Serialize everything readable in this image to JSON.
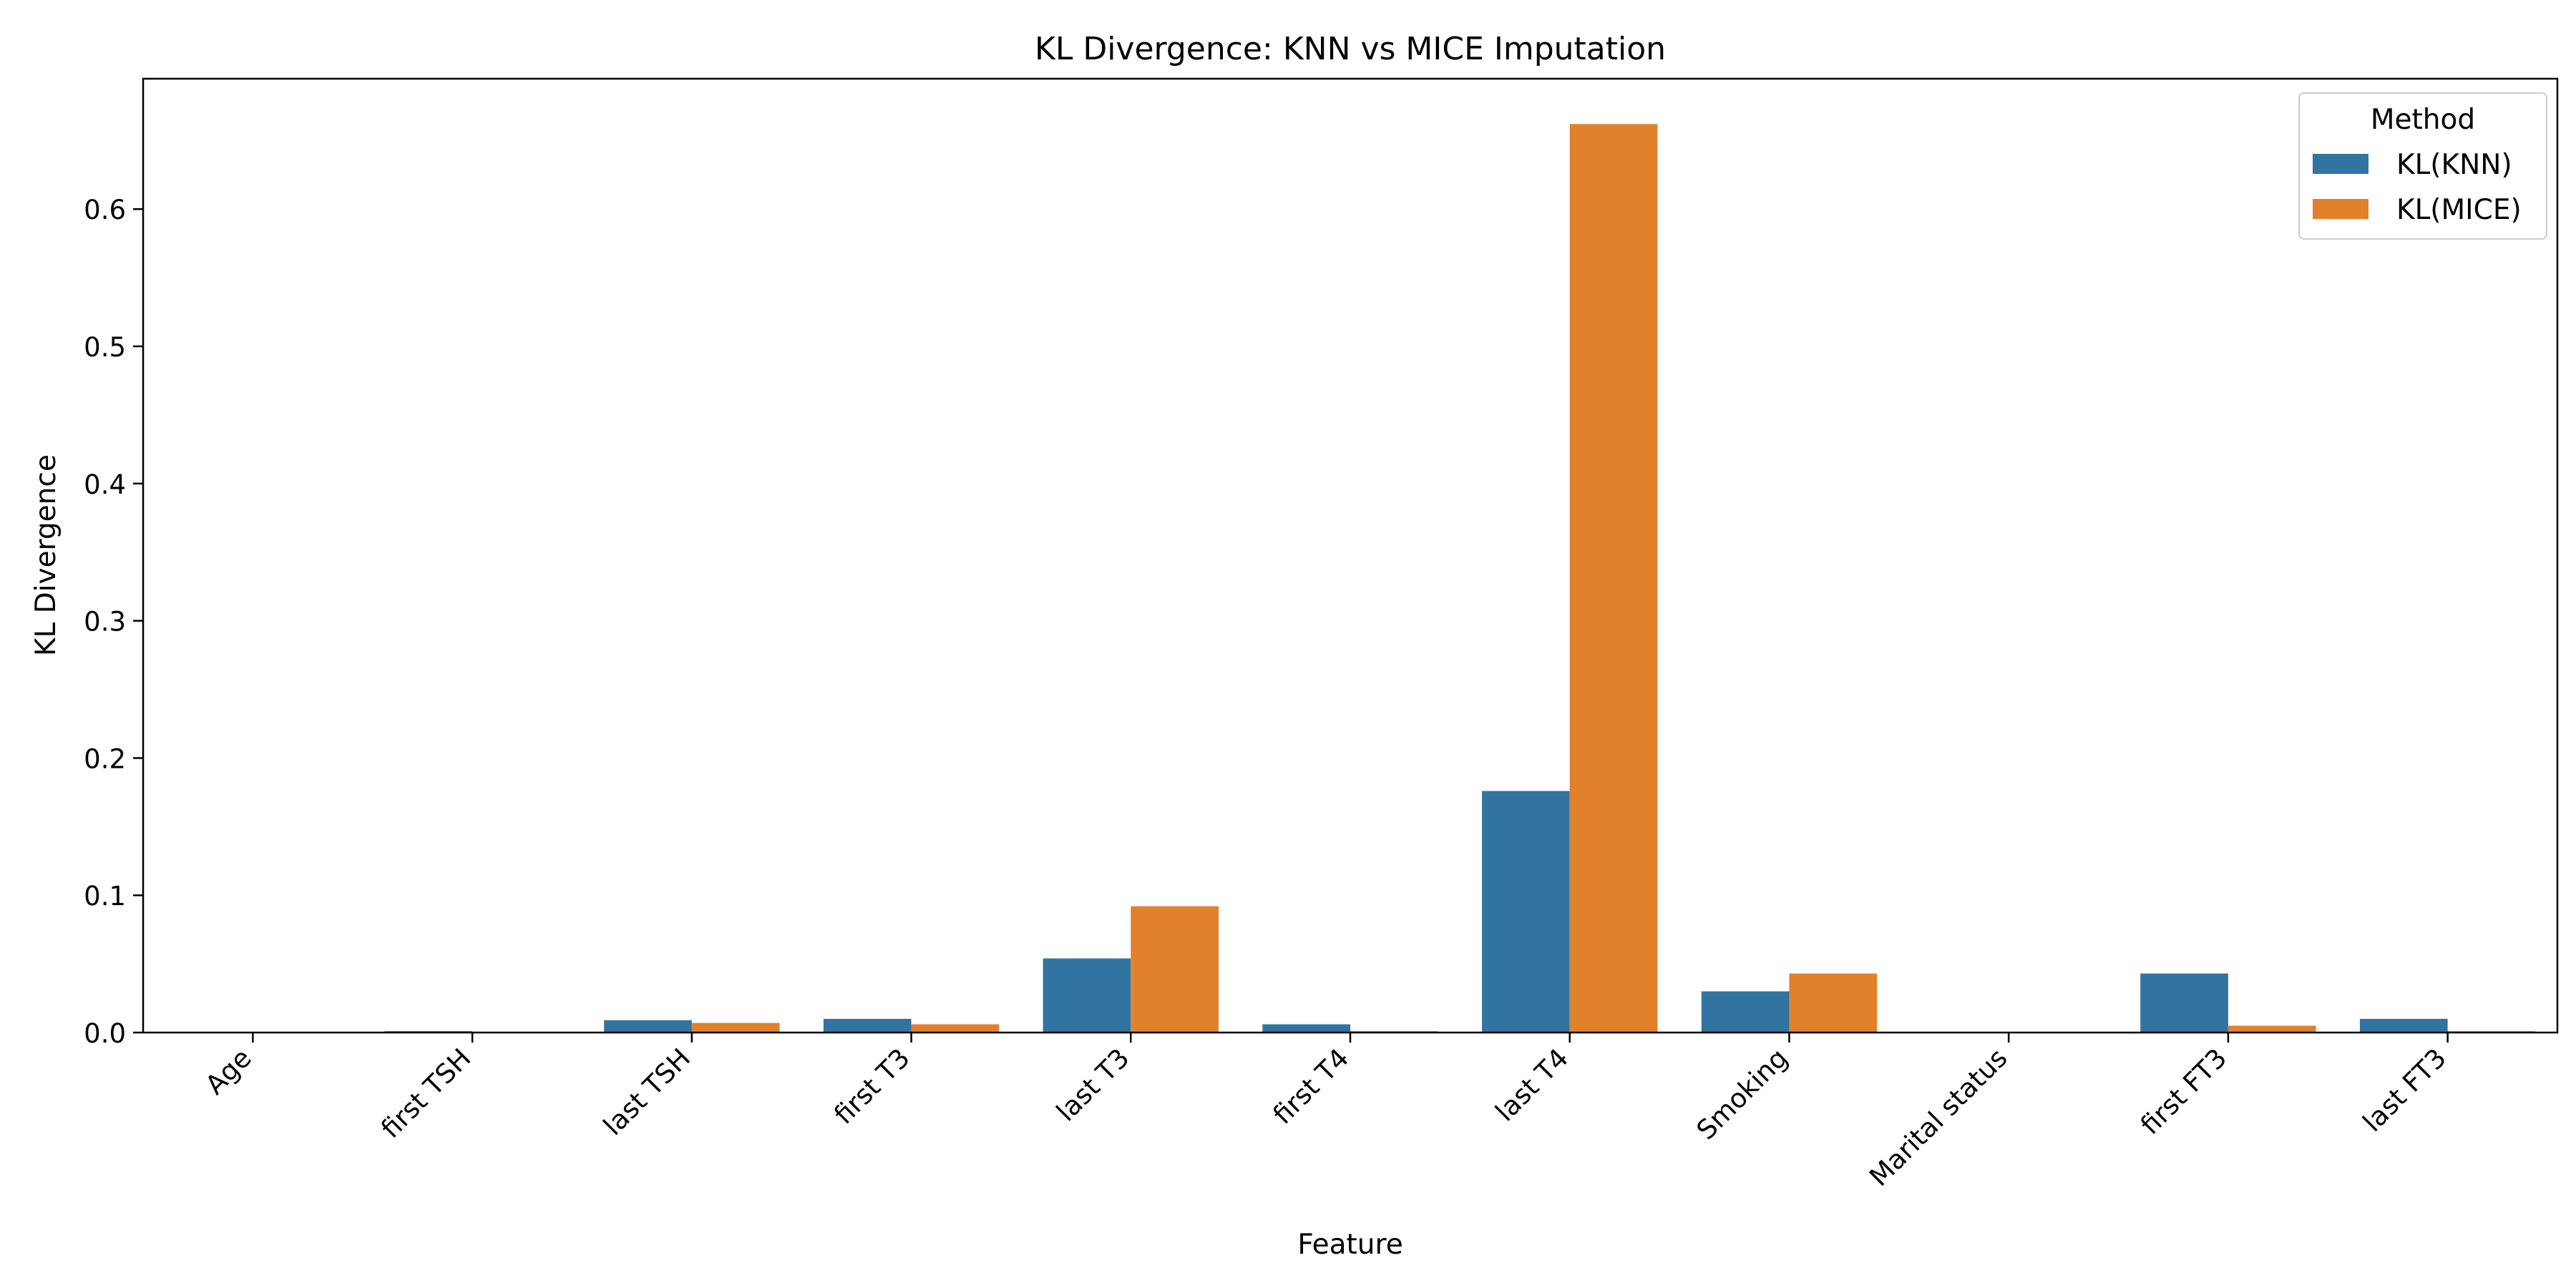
{
  "chart_data": {
    "type": "bar",
    "title": "KL Divergence: KNN vs MICE Imputation",
    "xlabel": "Feature",
    "ylabel": "KL Divergence",
    "categories": [
      "Age",
      "first TSH",
      "last TSH",
      "first T3",
      "last T3",
      "first T4",
      "last T4",
      "Smoking",
      "Marital status",
      "first FT3",
      "last FT3"
    ],
    "series": [
      {
        "name": "KL(KNN)",
        "color": "#3274a1",
        "values": [
          0.0,
          0.001,
          0.009,
          0.01,
          0.054,
          0.006,
          0.176,
          0.03,
          0.0,
          0.043,
          0.01
        ]
      },
      {
        "name": "KL(MICE)",
        "color": "#e1812c",
        "values": [
          0.0,
          0.0,
          0.007,
          0.006,
          0.092,
          0.001,
          0.662,
          0.043,
          0.0,
          0.005,
          0.001
        ]
      }
    ],
    "ylim": [
      0,
      0.695
    ],
    "yticks": [
      "0.0",
      "0.1",
      "0.2",
      "0.3",
      "0.4",
      "0.5",
      "0.6"
    ],
    "grid": false,
    "legend": {
      "title": "Method",
      "placement": "top-right"
    }
  }
}
